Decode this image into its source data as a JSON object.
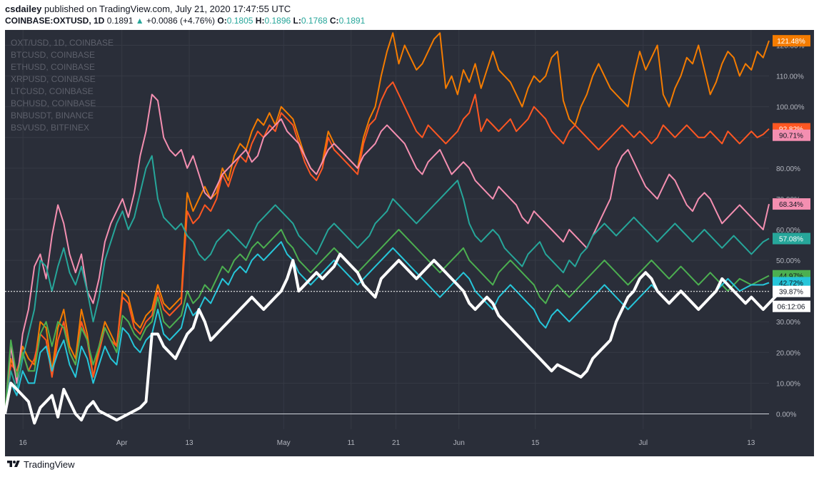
{
  "header": {
    "author": "csdailey",
    "published": "published on TradingView.com, July 21, 2020 17:47:55 UTC"
  },
  "symbol_line": {
    "symbol": "COINBASE:OXTUSD, 1D",
    "price": "0.1891",
    "change": "+0.0086 (+4.76%)",
    "o_key": "O:",
    "o": "0.1805",
    "h_key": "H:",
    "h": "0.1896",
    "l_key": "L:",
    "l": "0.1768",
    "c_key": "C:",
    "c": "0.1891"
  },
  "legend": [
    "OXT/USD, 1D, COINBASE",
    "BTCUSD, COINBASE",
    "ETHUSD, COINBASE",
    "XRPUSD, COINBASE",
    "LTCUSD, COINBASE",
    "BCHUSD, COINBASE",
    "BNBUSDT, BINANCE",
    "BSVUSD, BITFINEX"
  ],
  "footer": {
    "brand": "TradingView"
  },
  "colors": {
    "background": "#2a2e39",
    "grid": "#363a45",
    "axis_text": "#b2b5be",
    "price_line": "#ffffff"
  },
  "chart_data": {
    "type": "line",
    "x_tick_labels": [
      "16",
      "Apr",
      "13",
      "May",
      "11",
      "21",
      "Jun",
      "15",
      "Jul",
      "13"
    ],
    "y_ticks": [
      0,
      10,
      20,
      30,
      40,
      50,
      60,
      70,
      80,
      90,
      100,
      110,
      120
    ],
    "y_tick_labels": [
      "0.00%",
      "10.00%",
      "20.00%",
      "30.00%",
      "40.00%",
      "50.00%",
      "60.00%",
      "70.00%",
      "80.00%",
      "90.00%",
      "100.00%",
      "110.00%",
      "120.00%"
    ],
    "ylim": [
      -5,
      125
    ],
    "n_points": 131,
    "axis_tags": [
      {
        "label": "121.48%",
        "value": 121.48,
        "color": "#f57c00",
        "text_color": "#ffffff"
      },
      {
        "label": "92.82%",
        "value": 92.82,
        "color": "#ff5722",
        "text_color": "#ffffff"
      },
      {
        "label": "90.71%",
        "value": 90.71,
        "color": "#f48fb1",
        "text_color": "#131722"
      },
      {
        "label": "68.34%",
        "value": 68.34,
        "color": "#f48fb1",
        "text_color": "#131722"
      },
      {
        "label": "57.08%",
        "value": 57.08,
        "color": "#26a69a",
        "text_color": "#ffffff"
      },
      {
        "label": "44.97%",
        "value": 44.97,
        "color": "#4caf50",
        "text_color": "#131722"
      },
      {
        "label": "42.72%",
        "value": 42.72,
        "color": "#26c6da",
        "text_color": "#131722"
      },
      {
        "label": "39.87%",
        "value": 39.87,
        "color": "#ffffff",
        "text_color": "#131722"
      },
      {
        "label": "06:12:06",
        "value": 35.0,
        "color": "#ffffff",
        "text_color": "#131722"
      }
    ],
    "current_price_line_value": 39.87,
    "series": [
      {
        "color": "#f57c00",
        "width": 2,
        "values": [
          0,
          18,
          12,
          22,
          18,
          16,
          30,
          28,
          14,
          28,
          34,
          22,
          18,
          34,
          26,
          12,
          22,
          30,
          26,
          22,
          40,
          38,
          30,
          28,
          32,
          34,
          42,
          36,
          34,
          36,
          38,
          72,
          66,
          70,
          74,
          70,
          72,
          80,
          76,
          84,
          88,
          86,
          92,
          96,
          94,
          98,
          94,
          100,
          98,
          96,
          90,
          84,
          80,
          78,
          82,
          92,
          88,
          86,
          84,
          82,
          80,
          90,
          96,
          100,
          110,
          118,
          124,
          114,
          120,
          116,
          112,
          114,
          118,
          122,
          124,
          106,
          110,
          104,
          112,
          108,
          114,
          106,
          112,
          118,
          112,
          110,
          108,
          104,
          100,
          106,
          110,
          108,
          110,
          116,
          118,
          102,
          96,
          94,
          100,
          104,
          110,
          114,
          110,
          106,
          104,
          102,
          100,
          110,
          118,
          112,
          116,
          120,
          104,
          100,
          106,
          110,
          116,
          114,
          120,
          112,
          104,
          108,
          114,
          118,
          116,
          110,
          114,
          112,
          118,
          116,
          121.5
        ]
      },
      {
        "color": "#ff5722",
        "width": 2,
        "values": [
          0,
          16,
          14,
          20,
          14,
          18,
          26,
          24,
          12,
          24,
          30,
          20,
          16,
          30,
          24,
          12,
          20,
          28,
          24,
          22,
          38,
          36,
          28,
          26,
          30,
          32,
          40,
          34,
          32,
          34,
          36,
          66,
          62,
          64,
          68,
          66,
          70,
          78,
          74,
          80,
          84,
          82,
          88,
          92,
          90,
          94,
          92,
          98,
          96,
          94,
          88,
          82,
          78,
          76,
          80,
          90,
          86,
          84,
          82,
          80,
          78,
          88,
          94,
          96,
          102,
          106,
          108,
          104,
          100,
          96,
          92,
          90,
          94,
          92,
          90,
          88,
          90,
          92,
          96,
          98,
          104,
          92,
          96,
          94,
          92,
          94,
          96,
          92,
          94,
          96,
          100,
          98,
          96,
          92,
          90,
          88,
          92,
          94,
          92,
          90,
          88,
          86,
          88,
          90,
          92,
          94,
          92,
          90,
          92,
          90,
          88,
          90,
          94,
          92,
          90,
          92,
          94,
          92,
          90,
          90,
          92,
          90,
          88,
          92,
          90,
          88,
          90,
          92,
          90,
          91,
          92.8
        ]
      },
      {
        "color": "#f48fb1",
        "width": 2,
        "values": [
          0,
          22,
          10,
          26,
          34,
          48,
          52,
          44,
          58,
          68,
          62,
          52,
          46,
          52,
          40,
          36,
          44,
          56,
          62,
          66,
          70,
          64,
          72,
          84,
          92,
          104,
          102,
          90,
          86,
          84,
          86,
          80,
          84,
          78,
          72,
          70,
          74,
          78,
          80,
          82,
          84,
          86,
          82,
          84,
          90,
          92,
          94,
          96,
          92,
          90,
          88,
          84,
          80,
          78,
          82,
          86,
          88,
          86,
          84,
          82,
          80,
          84,
          86,
          88,
          92,
          94,
          92,
          90,
          88,
          84,
          80,
          78,
          82,
          84,
          86,
          82,
          78,
          80,
          82,
          80,
          76,
          74,
          72,
          70,
          74,
          72,
          70,
          68,
          64,
          62,
          66,
          64,
          62,
          60,
          58,
          56,
          60,
          58,
          56,
          54,
          58,
          62,
          66,
          70,
          80,
          84,
          86,
          82,
          78,
          74,
          72,
          70,
          74,
          78,
          76,
          72,
          68,
          66,
          70,
          72,
          70,
          66,
          62,
          64,
          66,
          68,
          66,
          64,
          62,
          60,
          68.3
        ]
      },
      {
        "color": "#26a69a",
        "width": 2,
        "values": [
          0,
          14,
          8,
          18,
          26,
          34,
          50,
          48,
          40,
          48,
          54,
          46,
          42,
          48,
          40,
          30,
          38,
          50,
          56,
          62,
          66,
          60,
          64,
          72,
          80,
          84,
          70,
          64,
          62,
          60,
          62,
          58,
          56,
          52,
          50,
          52,
          56,
          58,
          60,
          58,
          56,
          54,
          58,
          62,
          64,
          66,
          68,
          66,
          64,
          62,
          58,
          56,
          54,
          52,
          56,
          60,
          62,
          60,
          58,
          56,
          54,
          56,
          58,
          62,
          64,
          66,
          70,
          68,
          66,
          64,
          62,
          64,
          66,
          68,
          70,
          72,
          74,
          76,
          70,
          62,
          58,
          56,
          58,
          60,
          58,
          54,
          52,
          50,
          48,
          52,
          54,
          56,
          52,
          50,
          48,
          46,
          50,
          48,
          52,
          54,
          58,
          60,
          62,
          60,
          58,
          60,
          62,
          64,
          62,
          60,
          58,
          56,
          58,
          60,
          62,
          60,
          58,
          56,
          58,
          60,
          58,
          56,
          54,
          56,
          58,
          56,
          54,
          52,
          54,
          56,
          57.1
        ]
      },
      {
        "color": "#4caf50",
        "width": 2,
        "values": [
          0,
          24,
          12,
          20,
          14,
          14,
          26,
          30,
          22,
          30,
          28,
          20,
          16,
          28,
          24,
          16,
          22,
          28,
          24,
          20,
          32,
          30,
          26,
          24,
          28,
          30,
          38,
          30,
          28,
          30,
          32,
          40,
          36,
          38,
          42,
          40,
          44,
          48,
          46,
          50,
          52,
          50,
          54,
          56,
          54,
          56,
          58,
          60,
          56,
          54,
          50,
          48,
          46,
          48,
          50,
          52,
          54,
          52,
          50,
          48,
          46,
          48,
          50,
          52,
          54,
          56,
          58,
          60,
          58,
          56,
          54,
          52,
          50,
          48,
          46,
          48,
          50,
          52,
          54,
          50,
          48,
          46,
          44,
          42,
          46,
          48,
          50,
          48,
          46,
          44,
          42,
          38,
          36,
          40,
          42,
          40,
          38,
          40,
          42,
          44,
          46,
          48,
          50,
          48,
          46,
          44,
          42,
          44,
          46,
          48,
          50,
          48,
          46,
          44,
          46,
          48,
          46,
          44,
          42,
          44,
          46,
          44,
          42,
          40,
          42,
          44,
          43,
          42,
          43,
          44,
          45.0
        ]
      },
      {
        "color": "#26c6da",
        "width": 2,
        "values": [
          0,
          10,
          6,
          14,
          10,
          10,
          20,
          22,
          14,
          20,
          24,
          16,
          12,
          22,
          18,
          10,
          16,
          22,
          18,
          16,
          28,
          26,
          22,
          20,
          24,
          26,
          34,
          26,
          24,
          26,
          28,
          36,
          32,
          34,
          38,
          36,
          40,
          44,
          42,
          46,
          48,
          46,
          50,
          52,
          50,
          52,
          54,
          56,
          52,
          50,
          46,
          44,
          42,
          44,
          46,
          48,
          50,
          48,
          46,
          44,
          42,
          44,
          46,
          48,
          50,
          52,
          54,
          52,
          50,
          48,
          46,
          44,
          42,
          40,
          38,
          40,
          42,
          44,
          46,
          44,
          40,
          38,
          36,
          34,
          38,
          40,
          42,
          40,
          38,
          36,
          34,
          30,
          28,
          32,
          34,
          32,
          30,
          32,
          34,
          36,
          38,
          40,
          42,
          40,
          38,
          36,
          34,
          36,
          38,
          40,
          42,
          40,
          38,
          36,
          38,
          40,
          38,
          36,
          34,
          36,
          38,
          40,
          42,
          44,
          42,
          40,
          41,
          42,
          42,
          42,
          42.7
        ]
      },
      {
        "color": "#ffffff",
        "width": 4,
        "values": [
          0,
          10,
          8,
          6,
          4,
          -3,
          2,
          4,
          6,
          -1,
          8,
          4,
          0,
          -2,
          2,
          4,
          1,
          0,
          -1,
          -2,
          -1,
          0,
          1,
          2,
          4,
          26,
          26,
          22,
          20,
          18,
          22,
          26,
          28,
          34,
          30,
          24,
          26,
          28,
          30,
          32,
          34,
          36,
          38,
          36,
          34,
          36,
          38,
          40,
          44,
          50,
          40,
          42,
          44,
          46,
          44,
          46,
          48,
          52,
          50,
          48,
          46,
          42,
          40,
          38,
          44,
          46,
          48,
          50,
          48,
          46,
          44,
          46,
          48,
          50,
          48,
          46,
          44,
          42,
          40,
          36,
          34,
          36,
          38,
          36,
          32,
          30,
          28,
          26,
          24,
          22,
          20,
          18,
          16,
          14,
          16,
          15,
          14,
          13,
          12,
          14,
          18,
          20,
          22,
          24,
          30,
          34,
          38,
          40,
          44,
          46,
          44,
          40,
          38,
          36,
          38,
          40,
          38,
          36,
          34,
          36,
          38,
          40,
          44,
          42,
          40,
          38,
          36,
          38,
          36,
          34,
          36,
          38,
          39.9
        ]
      }
    ]
  }
}
